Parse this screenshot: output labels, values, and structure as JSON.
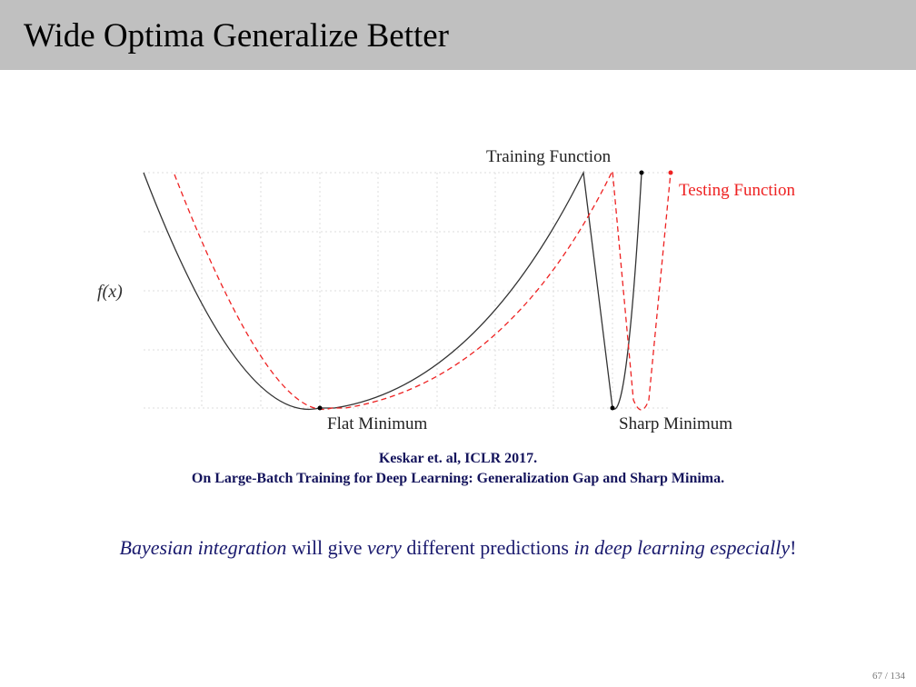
{
  "slide": {
    "title": "Wide Optima Generalize Better",
    "page": "67 / 134"
  },
  "figure": {
    "ylabel": "f(x)",
    "training_label": "Training Function",
    "testing_label": "Testing Function",
    "flat_label": "Flat Minimum",
    "sharp_label": "Sharp Minimum",
    "colors": {
      "training": "#333333",
      "testing": "#ee2222",
      "grid": "#dddddd"
    }
  },
  "citation": {
    "line1": "Keskar et. al, ICLR 2017.",
    "line2": "On Large-Batch Training for Deep Learning: Generalization Gap and Sharp Minima."
  },
  "statement": {
    "p1": "Bayesian integration",
    "p2": " will give ",
    "p3": "very",
    "p4": " different predictions ",
    "p5": "in deep learning especially",
    "p6": "!"
  }
}
